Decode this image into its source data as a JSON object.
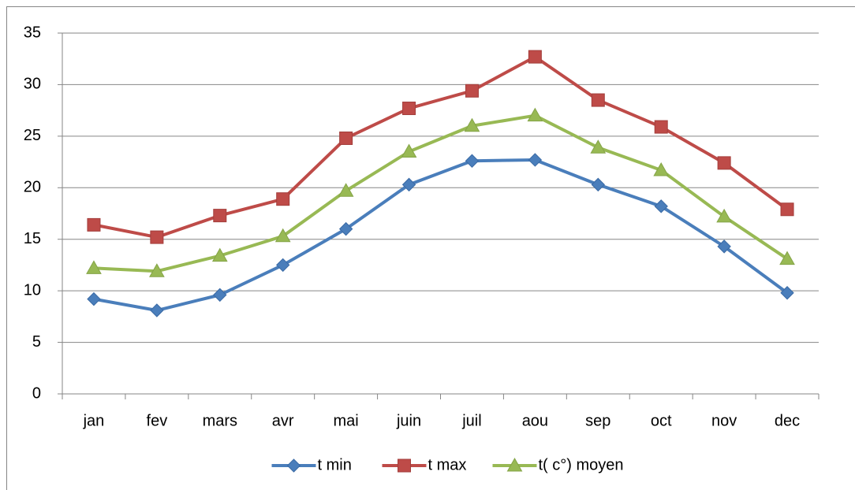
{
  "chart_data": {
    "type": "line",
    "categories": [
      "jan",
      "fev",
      "mars",
      "avr",
      "mai",
      "juin",
      "juil",
      "aou",
      "sep",
      "oct",
      "nov",
      "dec"
    ],
    "series": [
      {
        "name": "t min",
        "color": "#4a7ebb",
        "marker": "diamond",
        "values": [
          9.2,
          8.1,
          9.6,
          12.5,
          16.0,
          20.3,
          22.6,
          22.7,
          20.3,
          18.2,
          14.3,
          9.8
        ]
      },
      {
        "name": "t max",
        "color": "#be4b48",
        "marker": "square",
        "values": [
          16.4,
          15.2,
          17.3,
          18.9,
          24.8,
          27.7,
          29.4,
          32.7,
          28.5,
          25.9,
          22.4,
          17.9
        ]
      },
      {
        "name": "t( c°) moyen",
        "color": "#98b954",
        "marker": "triangle",
        "values": [
          12.2,
          11.9,
          13.4,
          15.3,
          19.7,
          23.5,
          26.0,
          27.0,
          23.9,
          21.7,
          17.2,
          13.1
        ]
      }
    ],
    "ylim": [
      0,
      35
    ],
    "yticks": [
      0,
      5,
      10,
      15,
      20,
      25,
      30,
      35
    ],
    "grid": true,
    "legend": "bottom"
  }
}
